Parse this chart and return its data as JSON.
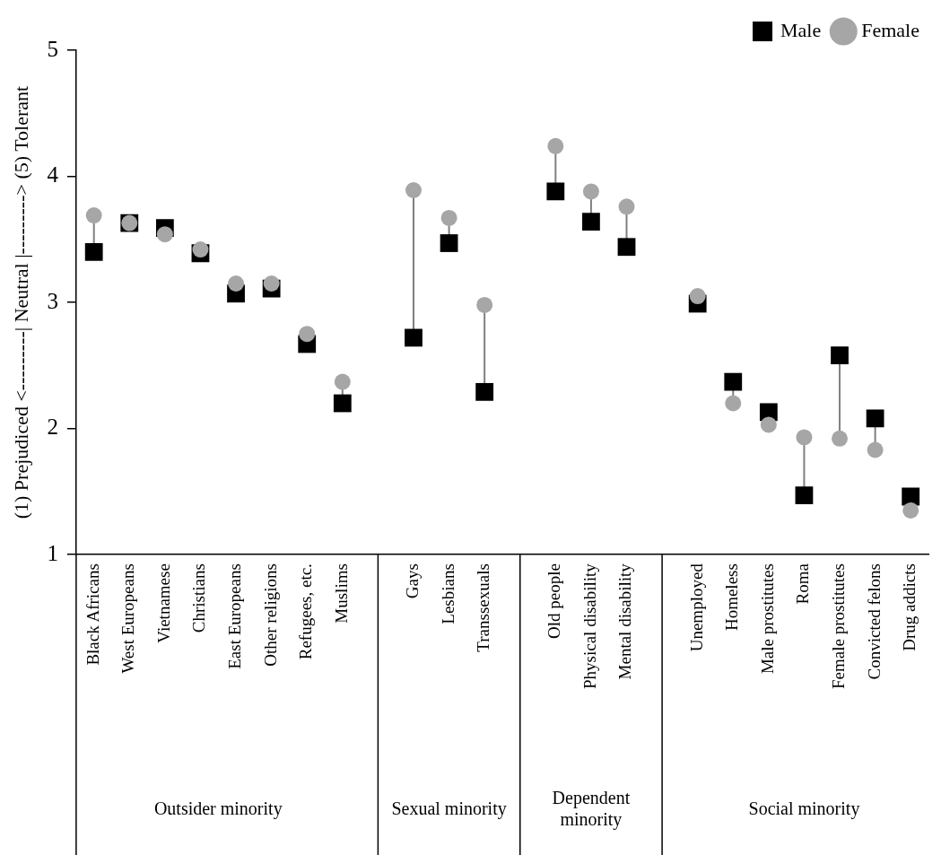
{
  "chart_data": {
    "type": "scatter",
    "ylabel": "(1) Prejudiced <---------| Neutral |---------> (5) Tolerant",
    "categories": [
      "Black Africans",
      "West Europeans",
      "Vietnamese",
      "Christians",
      "East Europeans",
      "Other religions",
      "Refugees, etc.",
      "Muslims",
      null,
      "Gays",
      "Lesbians",
      "Transsexuals",
      null,
      "Old people",
      "Physical disability",
      "Mental disability",
      null,
      "Unemployed",
      "Homeless",
      "Male prostitutes",
      "Roma",
      "Female prostitutes",
      "Convicted felons",
      "Drug addicts"
    ],
    "series": [
      {
        "name": "Male",
        "color": "#000000",
        "marker": "square",
        "values": [
          3.4,
          3.63,
          3.59,
          3.39,
          3.07,
          3.11,
          2.67,
          2.2,
          null,
          2.72,
          3.47,
          2.29,
          null,
          3.88,
          3.64,
          3.44,
          null,
          2.99,
          2.37,
          2.13,
          1.47,
          2.58,
          2.08,
          1.46
        ]
      },
      {
        "name": "Female",
        "color": "#a6a6a6",
        "marker": "circle",
        "values": [
          3.69,
          3.63,
          3.54,
          3.42,
          3.15,
          3.15,
          2.75,
          2.37,
          null,
          3.89,
          3.67,
          2.98,
          null,
          4.24,
          3.88,
          3.76,
          null,
          3.05,
          2.2,
          2.03,
          1.93,
          1.92,
          1.83,
          1.35
        ]
      }
    ],
    "annotations": [
      "Outsider minority",
      "Sexual minority",
      "Dependent minority",
      "Social minority"
    ],
    "ylim": [
      1,
      5
    ],
    "yticks": [
      1,
      2,
      3,
      4,
      5
    ],
    "grid": false,
    "legend": "top right"
  }
}
